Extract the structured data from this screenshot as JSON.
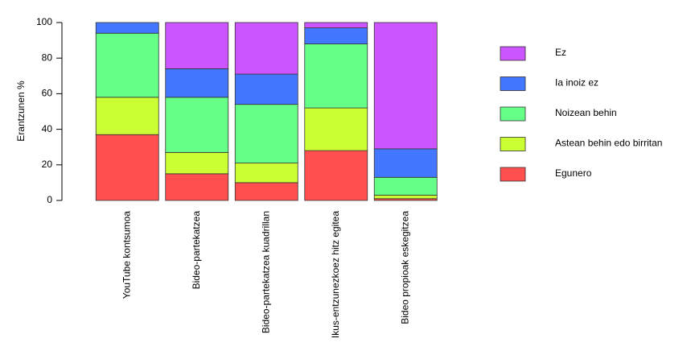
{
  "chart_data": {
    "type": "stacked_bar",
    "y_label": "Erantzunen %",
    "categories": [
      "YouTube kontsumoa",
      "Bideo-partekatzea",
      "Bideo-partekatzea kuadrillan",
      "Ikus-entzunezkoez hitz egitea",
      "Bideo propioak eskegitzea"
    ],
    "series": [
      {
        "name": "Egunero",
        "color": "#ff4f4f",
        "values": [
          37,
          15,
          10,
          28,
          1
        ]
      },
      {
        "name": "Astean behin edo birritan",
        "color": "#ccff33",
        "values": [
          21,
          12,
          11,
          24,
          2
        ]
      },
      {
        "name": "Noizean behin",
        "color": "#66ff88",
        "values": [
          36,
          31,
          33,
          36,
          10
        ]
      },
      {
        "name": "Ia inoiz ez",
        "color": "#4477ff",
        "values": [
          6,
          16,
          17,
          9,
          16
        ]
      },
      {
        "name": "Ez",
        "color": "#cc55ff",
        "values": [
          0,
          26,
          29,
          3,
          71
        ]
      }
    ],
    "ylim": [
      0,
      100
    ],
    "yticks": [
      0,
      20,
      40,
      60,
      80,
      100
    ],
    "legend": "right"
  }
}
